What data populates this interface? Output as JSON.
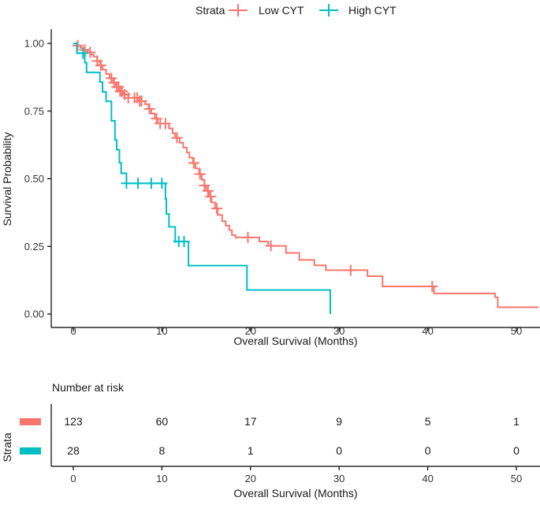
{
  "chart_data": {
    "type": "line",
    "subtype": "kaplan-meier",
    "title": "",
    "xlabel": "Overall Survival (Months)",
    "ylabel": "Survival Probability",
    "xlim": [
      -2.6,
      52.5
    ],
    "ylim": [
      0,
      1.0
    ],
    "x_ticks": [
      0,
      10,
      20,
      30,
      40,
      50
    ],
    "x_tick_labels": [
      "0",
      "10",
      "20",
      "30",
      "40",
      "50"
    ],
    "y_ticks": [
      0,
      0.25,
      0.5,
      0.75,
      1.0
    ],
    "y_tick_labels": [
      "0.00",
      "0.25",
      "0.50",
      "0.75",
      "1.00"
    ],
    "grid": false,
    "legend": {
      "title": "Strata",
      "placement": "top",
      "entries": [
        "Low CYT",
        "High CYT"
      ]
    },
    "series": [
      {
        "name": "Low CYT",
        "color": "#F8766D",
        "steps": [
          [
            0,
            1.0
          ],
          [
            0.5,
            0.992
          ],
          [
            0.8,
            0.984
          ],
          [
            1.2,
            0.976
          ],
          [
            1.6,
            0.967
          ],
          [
            2.0,
            0.959
          ],
          [
            2.3,
            0.951
          ],
          [
            2.7,
            0.935
          ],
          [
            3.0,
            0.919
          ],
          [
            3.3,
            0.903
          ],
          [
            3.7,
            0.887
          ],
          [
            4.1,
            0.871
          ],
          [
            4.5,
            0.855
          ],
          [
            4.8,
            0.839
          ],
          [
            5.2,
            0.823
          ],
          [
            5.6,
            0.811
          ],
          [
            6.2,
            0.799
          ],
          [
            7.4,
            0.787
          ],
          [
            8.1,
            0.775
          ],
          [
            8.5,
            0.758
          ],
          [
            8.8,
            0.741
          ],
          [
            9.2,
            0.722
          ],
          [
            9.5,
            0.704
          ],
          [
            10.8,
            0.686
          ],
          [
            11.2,
            0.668
          ],
          [
            11.5,
            0.651
          ],
          [
            12.0,
            0.633
          ],
          [
            12.4,
            0.615
          ],
          [
            12.8,
            0.597
          ],
          [
            13.1,
            0.578
          ],
          [
            13.5,
            0.558
          ],
          [
            13.8,
            0.538
          ],
          [
            14.2,
            0.517
          ],
          [
            14.5,
            0.496
          ],
          [
            14.8,
            0.475
          ],
          [
            15.0,
            0.455
          ],
          [
            15.3,
            0.434
          ],
          [
            15.6,
            0.412
          ],
          [
            16.0,
            0.39
          ],
          [
            16.3,
            0.366
          ],
          [
            16.8,
            0.343
          ],
          [
            17.2,
            0.327
          ],
          [
            17.6,
            0.31
          ],
          [
            17.9,
            0.292
          ],
          [
            18.3,
            0.283
          ],
          [
            21.0,
            0.268
          ],
          [
            22.0,
            0.252
          ],
          [
            24.0,
            0.226
          ],
          [
            25.5,
            0.2
          ],
          [
            27.2,
            0.18
          ],
          [
            28.5,
            0.162
          ],
          [
            33.2,
            0.14
          ],
          [
            34.9,
            0.102
          ],
          [
            40.7,
            0.076
          ],
          [
            47.6,
            0.062
          ],
          [
            47.9,
            0.025
          ],
          [
            52.5,
            0.025
          ]
        ],
        "censor_times": [
          0.5,
          1.3,
          1.9,
          2.7,
          3.1,
          4.3,
          4.6,
          4.9,
          5.1,
          5.3,
          5.5,
          5.8,
          6.2,
          6.9,
          7.2,
          7.5,
          7.7,
          8.6,
          9.4,
          9.8,
          10.4,
          11.7,
          13.6,
          14.3,
          14.8,
          15.2,
          15.5,
          16.2,
          19.7,
          22.3,
          31.3,
          40.5
        ]
      },
      {
        "name": "High CYT",
        "color": "#00BFC4",
        "steps": [
          [
            0,
            1.0
          ],
          [
            0.4,
            0.964
          ],
          [
            1.3,
            0.929
          ],
          [
            1.5,
            0.893
          ],
          [
            3.0,
            0.857
          ],
          [
            3.3,
            0.821
          ],
          [
            3.7,
            0.786
          ],
          [
            4.3,
            0.714
          ],
          [
            4.7,
            0.643
          ],
          [
            4.9,
            0.607
          ],
          [
            5.2,
            0.559
          ],
          [
            5.4,
            0.52
          ],
          [
            6.0,
            0.483
          ],
          [
            10.2,
            0.483
          ],
          [
            10.4,
            0.426
          ],
          [
            10.5,
            0.37
          ],
          [
            10.8,
            0.322
          ],
          [
            11.5,
            0.268
          ],
          [
            13.0,
            0.179
          ],
          [
            19.6,
            0.089
          ],
          [
            29.0,
            0.0
          ]
        ],
        "censor_times": [
          1.1,
          6.0,
          7.3,
          8.8,
          10.0,
          11.9,
          12.5
        ]
      }
    ],
    "risk_table": {
      "title": "Number at risk",
      "y_label": "Strata",
      "xlabel": "Overall Survival (Months)",
      "times": [
        0,
        10,
        20,
        30,
        40,
        50
      ],
      "rows": [
        {
          "name": "Low CYT",
          "color": "#F8766D",
          "values": [
            123,
            60,
            17,
            9,
            5,
            1
          ]
        },
        {
          "name": "High CYT",
          "color": "#00BFC4",
          "values": [
            28,
            8,
            1,
            0,
            0,
            0
          ]
        }
      ]
    }
  }
}
